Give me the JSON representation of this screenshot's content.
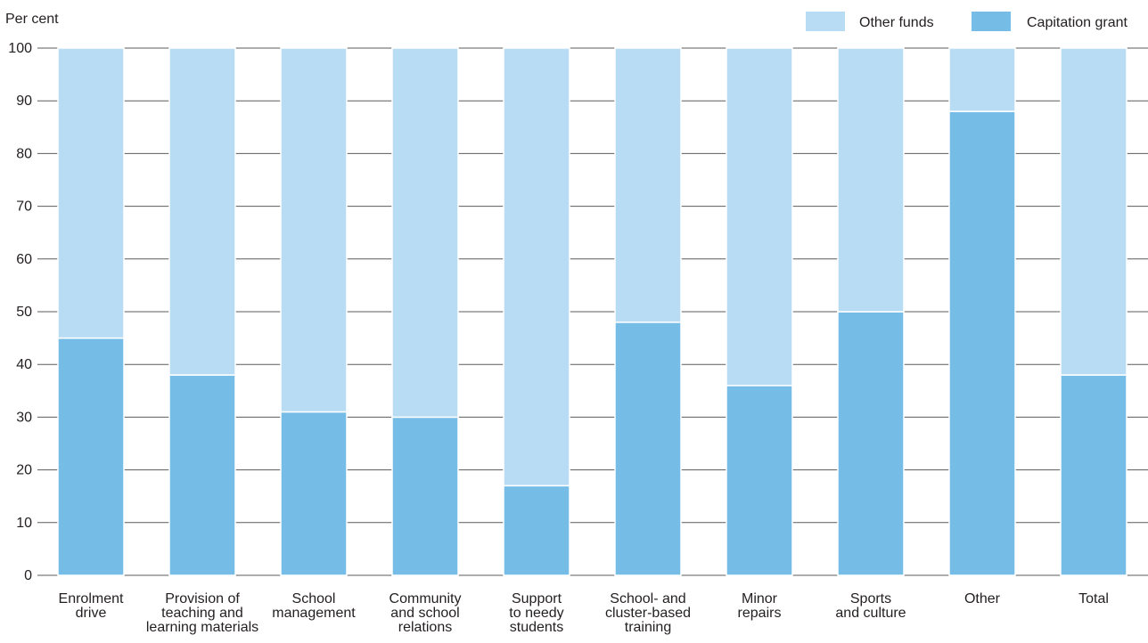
{
  "chart_data": {
    "type": "bar",
    "stacked": true,
    "ylabel": "Per cent",
    "ylim": [
      0,
      100
    ],
    "yticks": [
      0,
      10,
      20,
      30,
      40,
      50,
      60,
      70,
      80,
      90,
      100
    ],
    "grid": true,
    "legend_position": "top-right",
    "categories": [
      [
        "Enrolment",
        "drive"
      ],
      [
        "Provision of",
        "teaching and",
        "learning materials"
      ],
      [
        "School",
        "management"
      ],
      [
        "Community",
        "and school",
        "relations"
      ],
      [
        "Support",
        "to needy",
        "students"
      ],
      [
        "School- and",
        "cluster-based",
        "training"
      ],
      [
        "Minor",
        "repairs"
      ],
      [
        "Sports",
        "and culture"
      ],
      [
        "Other"
      ],
      [
        "Total"
      ]
    ],
    "series": [
      {
        "name": "Capitation grant",
        "color": "#75bde7",
        "values": [
          45,
          38,
          31,
          30,
          17,
          48,
          36,
          50,
          88,
          38
        ]
      },
      {
        "name": "Other funds",
        "color": "#b8dcf3",
        "values": [
          55,
          62,
          69,
          70,
          83,
          52,
          64,
          50,
          12,
          62
        ]
      }
    ],
    "legend_order": [
      "Other funds",
      "Capitation grant"
    ]
  }
}
